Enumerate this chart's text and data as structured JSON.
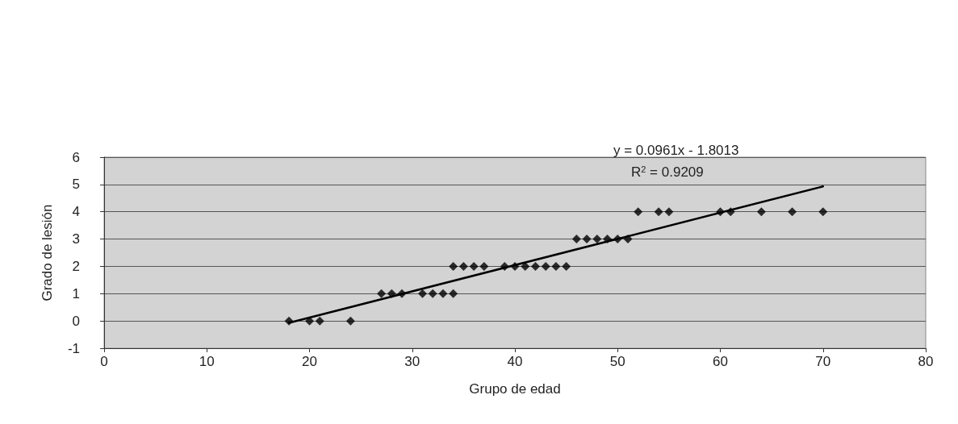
{
  "chart_data": {
    "type": "scatter",
    "xlabel": "Grupo de edad",
    "ylabel": "Grado de lesión",
    "xlim": [
      0,
      80
    ],
    "xticks": [
      0,
      10,
      20,
      30,
      40,
      50,
      60,
      70,
      80
    ],
    "ylim": [
      -1,
      6
    ],
    "yticks": [
      -1,
      0,
      1,
      2,
      3,
      4,
      5,
      6
    ],
    "grid": "y",
    "marker": "diamond",
    "annotations": [
      "y = 0.0961x - 1.8013",
      "R$^{2}$ = 0.9209"
    ],
    "series": [
      {
        "color": "#000000",
        "x": [
          18,
          20,
          21,
          24,
          27,
          28,
          29,
          31,
          32,
          33,
          34,
          34,
          35,
          36,
          37,
          39,
          40,
          41,
          42,
          43,
          44,
          45,
          46,
          47,
          48,
          49,
          50,
          51,
          52,
          54,
          55,
          60,
          61,
          64,
          67,
          70
        ],
        "values": [
          0,
          0,
          0,
          0,
          1,
          1,
          1,
          1,
          1,
          1,
          1,
          2,
          2,
          2,
          2,
          2,
          2,
          2,
          2,
          2,
          2,
          2,
          3,
          3,
          3,
          3,
          3,
          3,
          4,
          4,
          4,
          4,
          4,
          4,
          4,
          4
        ]
      },
      {
        "type": "line",
        "marker": "none",
        "color": "#000000",
        "x": [
          18,
          70
        ],
        "values": [
          -0.07,
          4.93
        ]
      }
    ]
  }
}
